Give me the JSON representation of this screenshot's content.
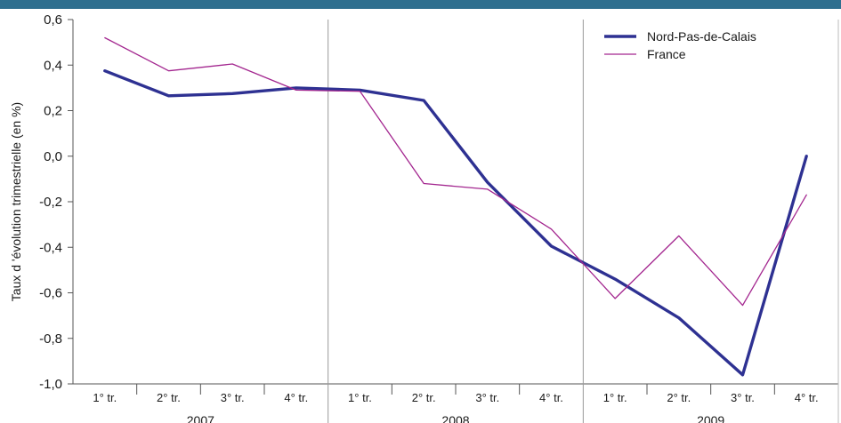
{
  "chart_data": {
    "type": "line",
    "ylabel": "Taux d 'évolution trimestrielle (en %)",
    "ylim": [
      -1.0,
      0.6
    ],
    "yticks": [
      "0,6",
      "0,4",
      "0,2",
      "0,0",
      "-0,2",
      "-0,4",
      "-0,6",
      "-0,8",
      "-1,0"
    ],
    "categories": [
      "1° tr.",
      "2° tr.",
      "3° tr.",
      "4° tr.",
      "1° tr.",
      "2° tr.",
      "3° tr.",
      "4° tr.",
      "1° tr.",
      "2° tr.",
      "3° tr.",
      "4° tr."
    ],
    "years": [
      "2007",
      "2008",
      "2009"
    ],
    "legend_position": "top-right",
    "grid": "vertical lines between years",
    "series": [
      {
        "name": "Nord-Pas-de-Calais",
        "color": "#2e3192",
        "style": "thick",
        "values": [
          0.375,
          0.265,
          0.275,
          0.3,
          0.29,
          0.245,
          -0.115,
          -0.395,
          -0.54,
          -0.71,
          -0.96,
          0.0
        ]
      },
      {
        "name": "France",
        "color": "#a3268f",
        "style": "thin",
        "values": [
          0.52,
          0.375,
          0.405,
          0.29,
          0.285,
          -0.12,
          -0.145,
          -0.32,
          -0.625,
          -0.35,
          -0.655,
          -0.17
        ]
      }
    ]
  }
}
